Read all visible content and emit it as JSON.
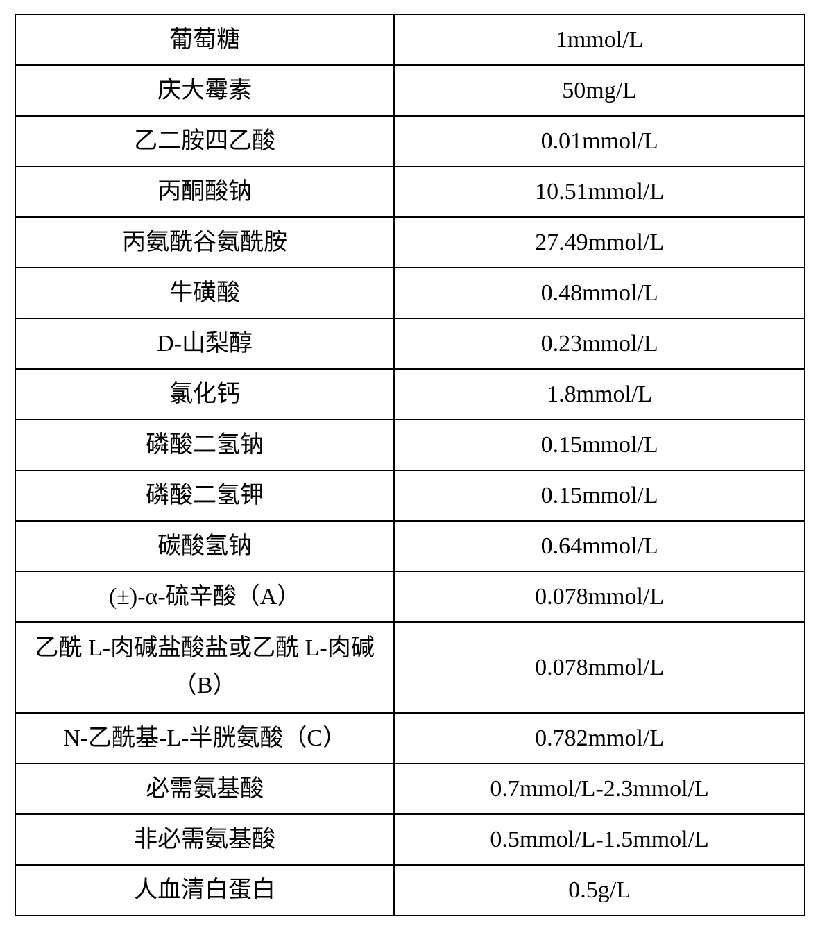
{
  "table": {
    "border_color": "#000000",
    "background_color": "#ffffff",
    "text_color": "#000000",
    "font_size": 34,
    "border_width": 2,
    "columns": [
      "name",
      "value"
    ],
    "rows": [
      {
        "name": "葡萄糖",
        "value": "1mmol/L"
      },
      {
        "name": "庆大霉素",
        "value": "50mg/L"
      },
      {
        "name": "乙二胺四乙酸",
        "value": "0.01mmol/L"
      },
      {
        "name": "丙酮酸钠",
        "value": "10.51mmol/L"
      },
      {
        "name": "丙氨酰谷氨酰胺",
        "value": "27.49mmol/L"
      },
      {
        "name": "牛磺酸",
        "value": "0.48mmol/L"
      },
      {
        "name": "D-山梨醇",
        "value": "0.23mmol/L"
      },
      {
        "name": "氯化钙",
        "value": "1.8mmol/L"
      },
      {
        "name": "磷酸二氢钠",
        "value": "0.15mmol/L"
      },
      {
        "name": "磷酸二氢钾",
        "value": "0.15mmol/L"
      },
      {
        "name": "碳酸氢钠",
        "value": "0.64mmol/L"
      },
      {
        "name": "(±)-α-硫辛酸（A）",
        "value": "0.078mmol/L"
      },
      {
        "name": "乙酰 L-肉碱盐酸盐或乙酰 L-肉碱（B）",
        "value": "0.078mmol/L",
        "multi_line": true
      },
      {
        "name": "N-乙酰基-L-半胱氨酸（C）",
        "value": "0.782mmol/L"
      },
      {
        "name": "必需氨基酸",
        "value": "0.7mmol/L-2.3mmol/L"
      },
      {
        "name": "非必需氨基酸",
        "value": "0.5mmol/L-1.5mmol/L"
      },
      {
        "name": "人血清白蛋白",
        "value": "0.5g/L"
      }
    ]
  }
}
